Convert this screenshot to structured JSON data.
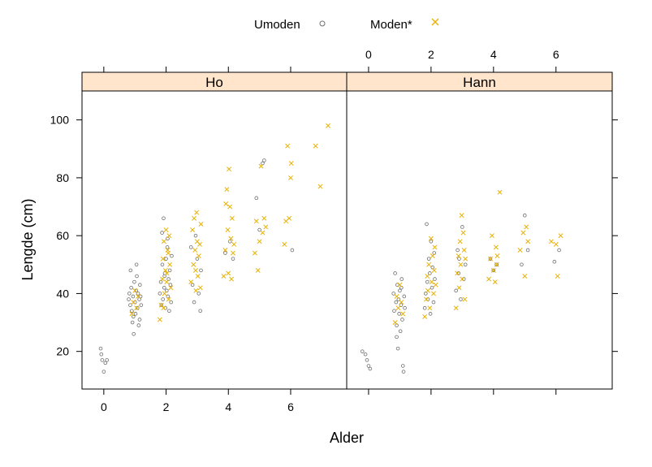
{
  "chart_data": {
    "type": "scatter",
    "xlabel": "Alder",
    "ylabel": "Lengde (cm)",
    "xlim": [
      -0.7,
      7.8
    ],
    "ylim": [
      7,
      110
    ],
    "xticks": [
      0,
      2,
      4,
      6
    ],
    "yticks": [
      20,
      40,
      60,
      80,
      100
    ],
    "legend": {
      "placement": "top",
      "entries": [
        {
          "label": "Umoden",
          "symbol": "circle",
          "color": "#707070"
        },
        {
          "label": "Moden*",
          "symbol": "cross",
          "color": "#e8b000"
        }
      ]
    },
    "panels": [
      {
        "strip": "Ho",
        "series": [
          {
            "name": "Umoden",
            "color": "#707070",
            "points": [
              [
                -0.1,
                21
              ],
              [
                -0.05,
                17
              ],
              [
                0.0,
                13
              ],
              [
                0.05,
                16
              ],
              [
                0.1,
                17
              ],
              [
                -0.08,
                19
              ],
              [
                0.8,
                38
              ],
              [
                0.85,
                36
              ],
              [
                0.88,
                42
              ],
              [
                0.9,
                34
              ],
              [
                0.92,
                30
              ],
              [
                0.94,
                39
              ],
              [
                0.96,
                26
              ],
              [
                0.98,
                44
              ],
              [
                1.0,
                37
              ],
              [
                1.02,
                33
              ],
              [
                1.04,
                41
              ],
              [
                1.06,
                46
              ],
              [
                1.08,
                35
              ],
              [
                1.1,
                40
              ],
              [
                1.12,
                29
              ],
              [
                1.14,
                38
              ],
              [
                1.16,
                43
              ],
              [
                1.2,
                36
              ],
              [
                0.86,
                48
              ],
              [
                1.05,
                50
              ],
              [
                0.95,
                32
              ],
              [
                1.15,
                31
              ],
              [
                0.82,
                40
              ],
              [
                1.18,
                39
              ],
              [
                1.8,
                40
              ],
              [
                1.83,
                44
              ],
              [
                1.85,
                36
              ],
              [
                1.88,
                50
              ],
              [
                1.9,
                38
              ],
              [
                1.92,
                66
              ],
              [
                1.94,
                42
              ],
              [
                1.96,
                47
              ],
              [
                1.98,
                35
              ],
              [
                2.0,
                52
              ],
              [
                2.02,
                41
              ],
              [
                2.04,
                56
              ],
              [
                2.06,
                39
              ],
              [
                2.08,
                45
              ],
              [
                2.1,
                34
              ],
              [
                2.12,
                48
              ],
              [
                2.14,
                43
              ],
              [
                2.16,
                37
              ],
              [
                2.18,
                53
              ],
              [
                1.87,
                61
              ],
              [
                2.05,
                59
              ],
              [
                1.95,
                46
              ],
              [
                2.8,
                56
              ],
              [
                2.85,
                43
              ],
              [
                2.9,
                37
              ],
              [
                2.95,
                60
              ],
              [
                3.0,
                52
              ],
              [
                3.05,
                40
              ],
              [
                3.1,
                34
              ],
              [
                3.12,
                48
              ],
              [
                3.9,
                54
              ],
              [
                4.05,
                58
              ],
              [
                4.15,
                52
              ],
              [
                4.9,
                73
              ],
              [
                5.0,
                62
              ],
              [
                5.1,
                85
              ],
              [
                5.15,
                86
              ],
              [
                6.05,
                55
              ]
            ]
          },
          {
            "name": "Moden*",
            "color": "#e8b000",
            "points": [
              [
                0.9,
                33
              ],
              [
                0.95,
                37
              ],
              [
                1.0,
                41
              ],
              [
                1.05,
                35
              ],
              [
                1.1,
                39
              ],
              [
                1.8,
                31
              ],
              [
                1.85,
                36
              ],
              [
                1.88,
                45
              ],
              [
                1.9,
                52
              ],
              [
                1.93,
                58
              ],
              [
                1.95,
                40
              ],
              [
                1.98,
                48
              ],
              [
                2.0,
                62
              ],
              [
                2.02,
                44
              ],
              [
                2.05,
                55
              ],
              [
                2.08,
                38
              ],
              [
                2.1,
                60
              ],
              [
                2.12,
                50
              ],
              [
                2.15,
                42
              ],
              [
                1.92,
                35
              ],
              [
                2.03,
                47
              ],
              [
                2.07,
                54
              ],
              [
                2.8,
                44
              ],
              [
                2.85,
                62
              ],
              [
                2.88,
                50
              ],
              [
                2.9,
                66
              ],
              [
                2.93,
                55
              ],
              [
                2.95,
                48
              ],
              [
                2.98,
                68
              ],
              [
                3.0,
                58
              ],
              [
                3.02,
                46
              ],
              [
                3.05,
                53
              ],
              [
                3.08,
                57
              ],
              [
                3.1,
                42
              ],
              [
                3.12,
                64
              ],
              [
                2.96,
                41
              ],
              [
                3.85,
                46
              ],
              [
                3.9,
                55
              ],
              [
                3.92,
                71
              ],
              [
                3.95,
                76
              ],
              [
                3.98,
                62
              ],
              [
                4.0,
                47
              ],
              [
                4.02,
                83
              ],
              [
                4.05,
                70
              ],
              [
                4.08,
                59
              ],
              [
                4.1,
                45
              ],
              [
                4.12,
                66
              ],
              [
                4.15,
                54
              ],
              [
                4.18,
                57
              ],
              [
                4.85,
                54
              ],
              [
                4.9,
                65
              ],
              [
                4.95,
                48
              ],
              [
                5.0,
                58
              ],
              [
                5.05,
                84
              ],
              [
                5.1,
                61
              ],
              [
                5.15,
                66
              ],
              [
                5.2,
                63
              ],
              [
                5.8,
                57
              ],
              [
                5.85,
                65
              ],
              [
                5.9,
                91
              ],
              [
                5.95,
                66
              ],
              [
                6.0,
                80
              ],
              [
                6.02,
                85
              ],
              [
                6.8,
                91
              ],
              [
                6.95,
                77
              ],
              [
                7.2,
                98
              ]
            ]
          }
        ]
      },
      {
        "strip": "Hann",
        "series": [
          {
            "name": "Umoden",
            "color": "#707070",
            "points": [
              [
                -0.2,
                20
              ],
              [
                -0.1,
                19
              ],
              [
                -0.05,
                17
              ],
              [
                0.0,
                15
              ],
              [
                0.05,
                14
              ],
              [
                0.8,
                40
              ],
              [
                0.82,
                34
              ],
              [
                0.85,
                47
              ],
              [
                0.88,
                37
              ],
              [
                0.9,
                29
              ],
              [
                0.92,
                43
              ],
              [
                0.94,
                21
              ],
              [
                0.96,
                38
              ],
              [
                0.98,
                33
              ],
              [
                1.0,
                41
              ],
              [
                1.02,
                27
              ],
              [
                1.04,
                36
              ],
              [
                1.06,
                45
              ],
              [
                1.08,
                31
              ],
              [
                1.1,
                15
              ],
              [
                1.12,
                13
              ],
              [
                1.14,
                39
              ],
              [
                1.16,
                35
              ],
              [
                0.9,
                25
              ],
              [
                1.05,
                42
              ],
              [
                1.8,
                35
              ],
              [
                1.83,
                40
              ],
              [
                1.86,
                64
              ],
              [
                1.88,
                44
              ],
              [
                1.9,
                38
              ],
              [
                1.93,
                52
              ],
              [
                1.96,
                47
              ],
              [
                1.98,
                33
              ],
              [
                2.0,
                58
              ],
              [
                2.03,
                42
              ],
              [
                2.05,
                49
              ],
              [
                2.08,
                37
              ],
              [
                2.1,
                54
              ],
              [
                2.12,
                45
              ],
              [
                2.8,
                41
              ],
              [
                2.85,
                55
              ],
              [
                2.88,
                47
              ],
              [
                2.9,
                52
              ],
              [
                2.95,
                38
              ],
              [
                3.0,
                63
              ],
              [
                3.05,
                45
              ],
              [
                3.1,
                50
              ],
              [
                3.9,
                52
              ],
              [
                4.0,
                48
              ],
              [
                4.1,
                50
              ],
              [
                4.9,
                50
              ],
              [
                5.0,
                67
              ],
              [
                5.1,
                55
              ],
              [
                5.95,
                51
              ],
              [
                6.1,
                55
              ]
            ]
          },
          {
            "name": "Moden*",
            "color": "#e8b000",
            "points": [
              [
                0.85,
                30
              ],
              [
                0.9,
                39
              ],
              [
                0.95,
                35
              ],
              [
                1.0,
                43
              ],
              [
                1.05,
                37
              ],
              [
                1.1,
                33
              ],
              [
                1.8,
                32
              ],
              [
                1.85,
                38
              ],
              [
                1.88,
                46
              ],
              [
                1.9,
                41
              ],
              [
                1.93,
                50
              ],
              [
                1.96,
                35
              ],
              [
                2.0,
                59
              ],
              [
                2.02,
                44
              ],
              [
                2.05,
                53
              ],
              [
                2.08,
                40
              ],
              [
                2.1,
                48
              ],
              [
                2.12,
                56
              ],
              [
                2.15,
                43
              ],
              [
                2.8,
                35
              ],
              [
                2.84,
                47
              ],
              [
                2.88,
                53
              ],
              [
                2.9,
                42
              ],
              [
                2.93,
                58
              ],
              [
                2.95,
                50
              ],
              [
                2.98,
                67
              ],
              [
                3.0,
                45
              ],
              [
                3.03,
                61
              ],
              [
                3.06,
                55
              ],
              [
                3.08,
                38
              ],
              [
                3.1,
                52
              ],
              [
                3.85,
                45
              ],
              [
                3.9,
                52
              ],
              [
                3.95,
                60
              ],
              [
                4.0,
                48
              ],
              [
                4.05,
                44
              ],
              [
                4.08,
                56
              ],
              [
                4.1,
                50
              ],
              [
                4.12,
                53
              ],
              [
                4.2,
                75
              ],
              [
                4.85,
                55
              ],
              [
                4.95,
                61
              ],
              [
                5.0,
                46
              ],
              [
                5.05,
                63
              ],
              [
                5.1,
                58
              ],
              [
                5.85,
                58
              ],
              [
                6.0,
                57
              ],
              [
                6.05,
                46
              ],
              [
                6.15,
                60
              ]
            ]
          }
        ]
      }
    ]
  }
}
